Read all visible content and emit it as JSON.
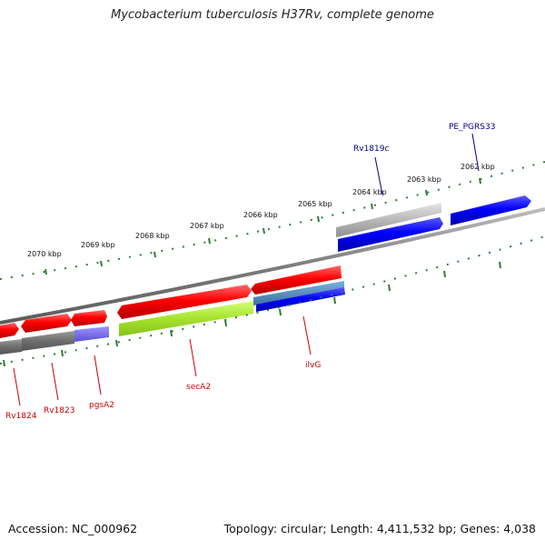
{
  "title": "Mycobacterium tuberculosis H37Rv, complete genome",
  "footer": {
    "accession": "Accession: NC_000962",
    "summary": "Topology: circular; Length: 4,411,532 bp; Genes: 4,038"
  },
  "scale_labels": [
    "2070 kbp",
    "2069 kbp",
    "2068 kbp",
    "2067 kbp",
    "2066 kbp",
    "2065 kbp",
    "2064 kbp",
    "2063 kbp",
    "2062 kbp"
  ],
  "gene_labels": {
    "top": [
      {
        "name": "Rv1819c",
        "color": "#00008b"
      },
      {
        "name": "PE_PGRS33",
        "color": "#00008b"
      }
    ],
    "bottom": [
      {
        "name": "Rv1824",
        "color": "#cc0000"
      },
      {
        "name": "Rv1823",
        "color": "#cc0000"
      },
      {
        "name": "pgsA2",
        "color": "#cc0000"
      },
      {
        "name": "secA2",
        "color": "#cc0000"
      },
      {
        "name": "ilvG",
        "color": "#cc0000"
      }
    ]
  },
  "colors": {
    "backbone": "#808080",
    "tick": "#2e7d32",
    "forward_cds": "#ff0000",
    "reverse_cds": "#0000ff",
    "gray_feature": "#7a7a7a",
    "lime_feature": "#a6e22e",
    "steel_feature": "#4682b4",
    "purple_feature": "#7b68ee"
  }
}
